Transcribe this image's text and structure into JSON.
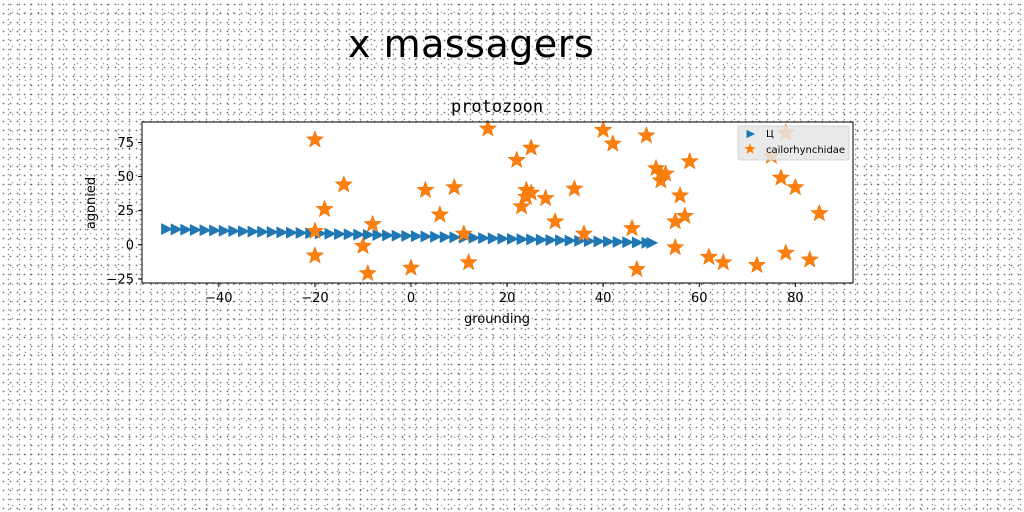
{
  "page_title": "x massagers",
  "chart_data": {
    "type": "scatter",
    "title": "protozoon",
    "xlabel": "grounding",
    "ylabel": "agonied",
    "xlim": [
      -56,
      92
    ],
    "ylim": [
      -28,
      90
    ],
    "xticks": [
      -40,
      -20,
      0,
      20,
      40,
      60,
      80
    ],
    "yticks": [
      -25,
      0,
      25,
      50,
      75
    ],
    "grid": false,
    "legend_position": "top-right",
    "series": [
      {
        "name": "Ц",
        "marker": "triangle-right",
        "color": "#1f77b4",
        "x": [
          -51,
          -49,
          -47,
          -45,
          -43,
          -41,
          -39,
          -37,
          -35,
          -33,
          -31,
          -29,
          -27,
          -25,
          -23,
          -21,
          -19,
          -17,
          -15,
          -13,
          -11,
          -9,
          -7,
          -5,
          -3,
          -1,
          1,
          3,
          5,
          7,
          9,
          11,
          13,
          15,
          17,
          19,
          21,
          23,
          25,
          27,
          29,
          31,
          33,
          35,
          37,
          39,
          41,
          43,
          45,
          47,
          49,
          50
        ],
        "y": [
          11.5,
          11.3,
          11.1,
          10.9,
          10.7,
          10.5,
          10.3,
          10.1,
          9.9,
          9.7,
          9.5,
          9.3,
          9.1,
          8.9,
          8.7,
          8.5,
          8.3,
          8.1,
          7.9,
          7.7,
          7.5,
          7.3,
          7.1,
          6.9,
          6.7,
          6.5,
          6.3,
          6.1,
          5.9,
          5.7,
          5.5,
          5.3,
          5.1,
          4.9,
          4.7,
          4.5,
          4.3,
          4.1,
          3.9,
          3.7,
          3.5,
          3.3,
          3.1,
          2.9,
          2.7,
          2.5,
          2.3,
          2.1,
          1.9,
          1.7,
          1.5,
          1.4
        ]
      },
      {
        "name": "cailorhynchidae",
        "marker": "star",
        "color": "#ff7f0e",
        "x": [
          -20,
          -20,
          -20,
          -18,
          -14,
          -10,
          -9,
          -8,
          0,
          3,
          6,
          9,
          11,
          12,
          16,
          22,
          23,
          24,
          24,
          25,
          25,
          28,
          30,
          34,
          36,
          40,
          42,
          46,
          47,
          49,
          51,
          52,
          52,
          53,
          55,
          55,
          56,
          57,
          58,
          62,
          65,
          72,
          75,
          77,
          78,
          78,
          80,
          83,
          85
        ],
        "y": [
          77,
          10,
          -8,
          26,
          44,
          -1,
          -21,
          15,
          -17,
          40,
          22,
          42,
          8,
          -13,
          85,
          62,
          28,
          40,
          35,
          71,
          38,
          34,
          17,
          41,
          8,
          84,
          74,
          12,
          -18,
          80,
          56,
          47,
          52,
          52,
          17,
          -2,
          36,
          21,
          61,
          -9,
          -13,
          -15,
          65,
          49,
          82,
          -6,
          42,
          -11,
          23
        ]
      }
    ]
  }
}
